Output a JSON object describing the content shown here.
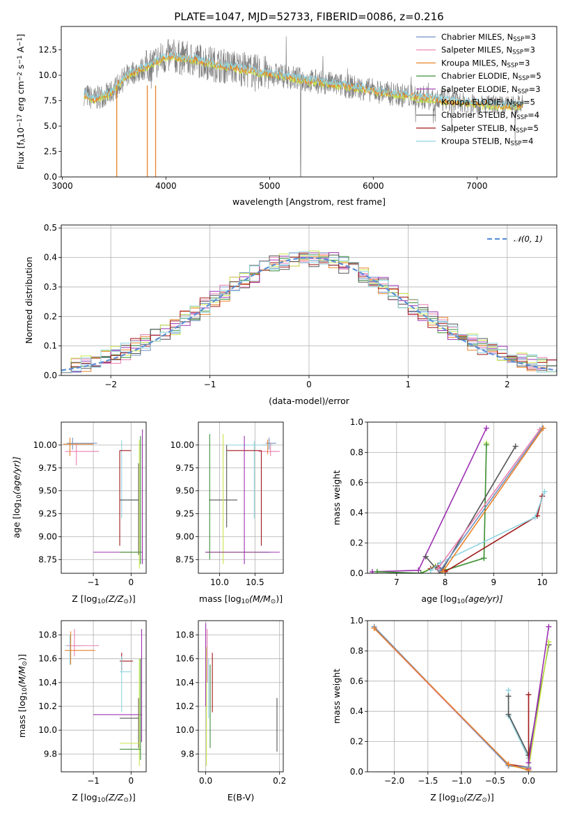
{
  "title": "PLATE=1047, MJD=52733, FIBERID=0086, z=0.216",
  "colors": {
    "chabrier_miles": "#6f8fc0",
    "salpeter_miles": "#e87fb0",
    "kroupa_miles": "#e8822a",
    "chabrier_elodie": "#3e8f3e",
    "salpeter_elodie": "#9b30b0",
    "kroupa_elodie": "#c8e64a",
    "chabrier_stelib": "#555555",
    "salpeter_stelib": "#a01818",
    "kroupa_stelib": "#8fd3e0",
    "data": "#7f7f7f",
    "normal": "#5b8fd6"
  },
  "chart_data": [
    {
      "id": "spectrum",
      "type": "line",
      "xlabel": "wavelength [Angstrom, rest frame]",
      "ylabel": "Flux [f",
      "ylabel_sub": "λ",
      "ylabel_rest": "10",
      "ylabel_exp": "−17",
      "ylabel_end": " erg cm",
      "ylabel_exp2": "−2",
      "ylabel_end2": " s",
      "ylabel_exp3": "−1",
      "ylabel_end3": " A",
      "ylabel_exp4": "−1",
      "ylabel_close": "]",
      "xlim": [
        2990,
        7770
      ],
      "ylim": [
        0,
        14.8
      ],
      "xticks": [
        "3000",
        "4000",
        "5000",
        "6000",
        "7000"
      ],
      "xtick_values": [
        3000,
        4000,
        5000,
        6000,
        7000
      ],
      "yticks": [
        "0.0",
        "2.5",
        "5.0",
        "7.5",
        "10.0",
        "12.5"
      ],
      "ytick_values": [
        0,
        2.5,
        5,
        7.5,
        10,
        12.5
      ],
      "continuum": {
        "x": [
          3210,
          3300,
          3380,
          3450,
          3550,
          3650,
          3750,
          3850,
          3950,
          4050,
          4150,
          4300,
          4500,
          4700,
          4900,
          5100,
          5300,
          5500,
          5700,
          5900,
          6100,
          6300,
          6500,
          6700,
          6900,
          7100,
          7300,
          7450
        ],
        "y": [
          8.2,
          7.6,
          8.0,
          8.1,
          9.2,
          10.2,
          10.5,
          11.0,
          11.6,
          11.9,
          11.7,
          11.5,
          11.0,
          10.7,
          10.3,
          10.0,
          9.6,
          9.3,
          9.0,
          8.7,
          8.3,
          8.0,
          7.8,
          7.5,
          7.3,
          7.1,
          7.0,
          7.1
        ]
      },
      "legend": [
        {
          "name": "Chabrier MILES, N",
          "sub": "SSP",
          "end": "=3",
          "color_key": "chabrier_miles"
        },
        {
          "name": "Salpeter MILES, N",
          "sub": "SSP",
          "end": "=3",
          "color_key": "salpeter_miles"
        },
        {
          "name": "Kroupa MILES, N",
          "sub": "SSP",
          "end": "=3",
          "color_key": "kroupa_miles"
        },
        {
          "name": "Chabrier ELODIE, N",
          "sub": "SSP",
          "end": "=5",
          "color_key": "chabrier_elodie"
        },
        {
          "name": "Salpeter ELODIE, N",
          "sub": "SSP",
          "end": "=3",
          "color_key": "salpeter_elodie"
        },
        {
          "name": "Kroupa ELODIE, N",
          "sub": "SSP",
          "end": "=5",
          "color_key": "kroupa_elodie"
        },
        {
          "name": "Chabrier STELIB, N",
          "sub": "SSP",
          "end": "=4",
          "color_key": "chabrier_stelib"
        },
        {
          "name": "Salpeter STELIB, N",
          "sub": "SSP",
          "end": "=5",
          "color_key": "salpeter_stelib"
        },
        {
          "name": "Kroupa STELIB, N",
          "sub": "SSP",
          "end": "=4",
          "color_key": "kroupa_stelib"
        }
      ],
      "legend_placement": "top-right",
      "grid": false
    },
    {
      "id": "residuals",
      "type": "histogram",
      "xlabel": "(data-model)/error",
      "ylabel": "Normed distribution",
      "xlim": [
        -2.5,
        2.5
      ],
      "ylim": [
        0,
        0.51
      ],
      "xticks": [
        "−2",
        "−1",
        "0",
        "1",
        "2"
      ],
      "xtick_values": [
        -2,
        -1,
        0,
        1,
        2
      ],
      "yticks": [
        "0.0",
        "0.1",
        "0.2",
        "0.3",
        "0.4",
        "0.5"
      ],
      "ytick_values": [
        0,
        0.1,
        0.2,
        0.3,
        0.4,
        0.5
      ],
      "bin_width": 0.1,
      "legend": [
        {
          "name": "𝒩(0, 1)",
          "color_key": "normal",
          "style": "dashed"
        }
      ],
      "legend_placement": "top-right",
      "grid": true
    },
    {
      "id": "age_vs_Z",
      "type": "errorbar",
      "xlabel": "Z [log",
      "xlabel_sub": "10",
      "xlabel_end": "(Z/Z",
      "xlabel_sub2": "⊙",
      "xlabel_close": ")]",
      "ylabel": "age  [log",
      "ylabel_sub": "10",
      "ylabel_end": "(age/yr)]",
      "xlim": [
        -1.85,
        0.4
      ],
      "ylim": [
        8.6,
        10.25
      ],
      "xticks": [
        "−1",
        "0"
      ],
      "xtick_values": [
        -1,
        0
      ],
      "yticks": [
        "8.75",
        "9.00",
        "9.25",
        "9.50",
        "9.75",
        "10.00"
      ],
      "ytick_values": [
        8.75,
        9.0,
        9.25,
        9.5,
        9.75,
        10.0
      ],
      "grid": true
    },
    {
      "id": "age_vs_mass",
      "type": "errorbar",
      "xlabel": "mass [log",
      "xlabel_sub": "10",
      "xlabel_end": "(M/M",
      "xlabel_sub2": "⊙",
      "xlabel_close": ")]",
      "xlim": [
        9.7,
        10.9
      ],
      "ylim": [
        8.6,
        10.25
      ],
      "xticks": [
        "10.0",
        "10.5"
      ],
      "xtick_values": [
        10.0,
        10.5
      ],
      "yticks": [
        "8.75",
        "9.00",
        "9.25",
        "9.50",
        "9.75",
        "10.00"
      ],
      "ytick_values": [
        8.75,
        9.0,
        9.25,
        9.5,
        9.75,
        10.0
      ],
      "grid": true
    },
    {
      "id": "weight_vs_age",
      "type": "line",
      "xlabel": "age  [log",
      "xlabel_sub": "10",
      "xlabel_end": "(age/yr)]",
      "ylabel": "mass weight",
      "xlim": [
        6.4,
        10.3
      ],
      "ylim": [
        0,
        1.0
      ],
      "xticks": [
        "7",
        "8",
        "9",
        "10"
      ],
      "xtick_values": [
        7,
        8,
        9,
        10
      ],
      "yticks": [
        "0.0",
        "0.2",
        "0.4",
        "0.6",
        "0.8",
        "1.0"
      ],
      "ytick_values": [
        0,
        0.2,
        0.4,
        0.6,
        0.8,
        1.0
      ],
      "grid": true,
      "series": [
        {
          "color_key": "salpeter_elodie",
          "x": [
            6.5,
            7.45,
            8.85
          ],
          "y": [
            0.01,
            0.02,
            0.96
          ]
        },
        {
          "color_key": "kroupa_elodie",
          "x": [
            6.6,
            7.5,
            7.8,
            8.0,
            8.8,
            8.85
          ],
          "y": [
            0.01,
            0.0,
            0.05,
            0.02,
            0.1,
            0.86
          ]
        },
        {
          "color_key": "chabrier_elodie",
          "x": [
            6.6,
            7.5,
            7.8,
            8.0,
            8.8,
            8.85
          ],
          "y": [
            0.01,
            0.0,
            0.04,
            0.02,
            0.1,
            0.85
          ]
        },
        {
          "color_key": "chabrier_stelib",
          "x": [
            7.6,
            7.9,
            9.45
          ],
          "y": [
            0.11,
            0.0,
            0.84
          ]
        },
        {
          "color_key": "salpeter_stelib",
          "x": [
            7.7,
            7.85,
            8.0,
            9.9,
            10.0
          ],
          "y": [
            0.03,
            0.05,
            0.01,
            0.38,
            0.51
          ]
        },
        {
          "color_key": "kroupa_stelib",
          "x": [
            7.7,
            7.9,
            9.85,
            10.05
          ],
          "y": [
            0.02,
            0.07,
            0.37,
            0.54
          ]
        },
        {
          "color_key": "salpeter_miles",
          "x": [
            7.85,
            9.95
          ],
          "y": [
            0.03,
            0.95
          ]
        },
        {
          "color_key": "chabrier_miles",
          "x": [
            7.9,
            10.0
          ],
          "y": [
            0.02,
            0.96
          ]
        },
        {
          "color_key": "kroupa_miles",
          "x": [
            7.95,
            10.02
          ],
          "y": [
            0.01,
            0.96
          ]
        }
      ]
    },
    {
      "id": "mass_vs_Z",
      "type": "errorbar",
      "xlabel": "Z [log",
      "xlabel_sub": "10",
      "xlabel_end": "(Z/Z",
      "xlabel_sub2": "⊙",
      "xlabel_close": ")]",
      "ylabel": "mass [log",
      "ylabel_sub": "10",
      "ylabel_end": "(M/M",
      "ylabel_sub2": "⊙",
      "ylabel_close": ")]",
      "xlim": [
        -1.85,
        0.4
      ],
      "ylim": [
        9.65,
        10.92
      ],
      "xticks": [
        "−1",
        "0"
      ],
      "xtick_values": [
        -1,
        0
      ],
      "yticks": [
        "9.8",
        "10.0",
        "10.2",
        "10.4",
        "10.6",
        "10.8"
      ],
      "ytick_values": [
        9.8,
        10.0,
        10.2,
        10.4,
        10.6,
        10.8
      ],
      "grid": true
    },
    {
      "id": "mass_vs_ebv",
      "type": "errorbar",
      "xlabel": "E(B-V)",
      "xlim": [
        -0.02,
        0.21
      ],
      "ylim": [
        9.65,
        10.92
      ],
      "xticks": [
        "0.0",
        "0.2"
      ],
      "xtick_values": [
        0.0,
        0.2
      ],
      "yticks": [
        "9.8",
        "10.0",
        "10.2",
        "10.4",
        "10.6",
        "10.8"
      ],
      "ytick_values": [
        9.8,
        10.0,
        10.2,
        10.4,
        10.6,
        10.8
      ],
      "grid": true
    },
    {
      "id": "weight_vs_Z",
      "type": "line",
      "xlabel": "Z [log",
      "xlabel_sub": "10",
      "xlabel_end": "(Z/Z",
      "xlabel_sub2": "⊙",
      "xlabel_close": ")]",
      "ylabel": "mass weight",
      "xlim": [
        -2.4,
        0.42
      ],
      "ylim": [
        0,
        1.0
      ],
      "xticks": [
        "−2.0",
        "−1.5",
        "−1.0",
        "−0.5",
        "0.0"
      ],
      "xtick_values": [
        -2.0,
        -1.5,
        -1.0,
        -0.5,
        0.0
      ],
      "yticks": [
        "0.0",
        "0.2",
        "0.4",
        "0.6",
        "0.8",
        "1.0"
      ],
      "ytick_values": [
        0,
        0.2,
        0.4,
        0.6,
        0.8,
        1.0
      ],
      "grid": true,
      "series": [
        {
          "color_key": "kroupa_stelib",
          "x": [
            -0.3,
            -0.3,
            0.0,
            0.3
          ],
          "y": [
            0.54,
            0.37,
            0.09,
            0.84
          ]
        },
        {
          "color_key": "chabrier_stelib",
          "x": [
            -0.3,
            -0.3,
            0.0,
            0.3
          ],
          "y": [
            0.5,
            0.38,
            0.11,
            0.84
          ]
        },
        {
          "color_key": "salpeter_stelib",
          "x": [
            -0.3,
            0.0,
            0.0
          ],
          "y": [
            0.05,
            0.03,
            0.51
          ]
        },
        {
          "color_key": "kroupa_elodie",
          "x": [
            -0.3,
            0.0,
            0.3
          ],
          "y": [
            0.04,
            0.02,
            0.86
          ]
        },
        {
          "color_key": "salpeter_elodie",
          "x": [
            0.0,
            0.0,
            0.3
          ],
          "y": [
            0.02,
            0.06,
            0.96
          ]
        },
        {
          "color_key": "salpeter_miles",
          "x": [
            -2.3,
            -0.3,
            0.0
          ],
          "y": [
            0.95,
            0.04,
            0.03
          ]
        },
        {
          "color_key": "chabrier_miles",
          "x": [
            -2.3,
            -0.3,
            0.0
          ],
          "y": [
            0.96,
            0.04,
            0.03
          ]
        },
        {
          "color_key": "kroupa_miles",
          "x": [
            -2.3,
            -0.3,
            0.0
          ],
          "y": [
            0.95,
            0.05,
            0.01
          ]
        }
      ]
    }
  ]
}
